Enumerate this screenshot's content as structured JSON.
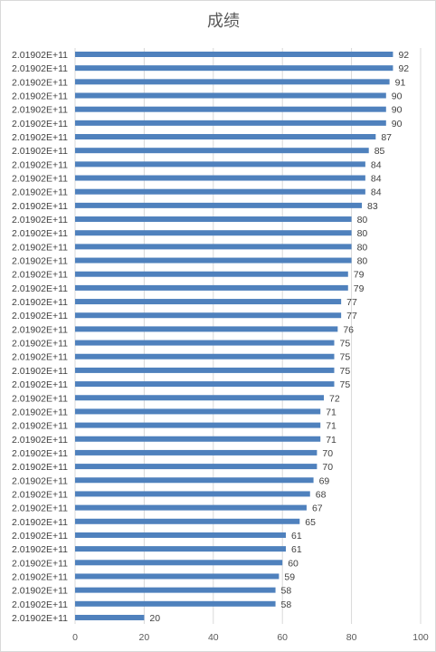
{
  "chart_data": {
    "type": "bar",
    "orientation": "horizontal",
    "title": "成绩",
    "xlabel": "",
    "ylabel": "",
    "xlim": [
      0,
      100
    ],
    "x_ticks": [
      "0",
      "20",
      "40",
      "60",
      "80",
      "100"
    ],
    "grid": true,
    "legend": "none",
    "bar_color": "#4f81bd",
    "categories": [
      "2.01902E+11",
      "2.01902E+11",
      "2.01902E+11",
      "2.01902E+11",
      "2.01902E+11",
      "2.01902E+11",
      "2.01902E+11",
      "2.01902E+11",
      "2.01902E+11",
      "2.01902E+11",
      "2.01902E+11",
      "2.01902E+11",
      "2.01902E+11",
      "2.01902E+11",
      "2.01902E+11",
      "2.01902E+11",
      "2.01902E+11",
      "2.01902E+11",
      "2.01902E+11",
      "2.01902E+11",
      "2.01902E+11",
      "2.01902E+11",
      "2.01902E+11",
      "2.01902E+11",
      "2.01902E+11",
      "2.01902E+11",
      "2.01902E+11",
      "2.01902E+11",
      "2.01902E+11",
      "2.01902E+11",
      "2.01902E+11",
      "2.01902E+11",
      "2.01902E+11",
      "2.01902E+11",
      "2.01902E+11",
      "2.01902E+11",
      "2.01902E+11",
      "2.01902E+11",
      "2.01902E+11",
      "2.01902E+11",
      "2.01902E+11",
      "2.01902E+11"
    ],
    "values": [
      92,
      92,
      91,
      90,
      90,
      90,
      87,
      85,
      84,
      84,
      84,
      83,
      80,
      80,
      80,
      80,
      79,
      79,
      77,
      77,
      76,
      75,
      75,
      75,
      75,
      72,
      71,
      71,
      71,
      70,
      70,
      69,
      68,
      67,
      65,
      61,
      61,
      60,
      59,
      58,
      58,
      20
    ]
  }
}
